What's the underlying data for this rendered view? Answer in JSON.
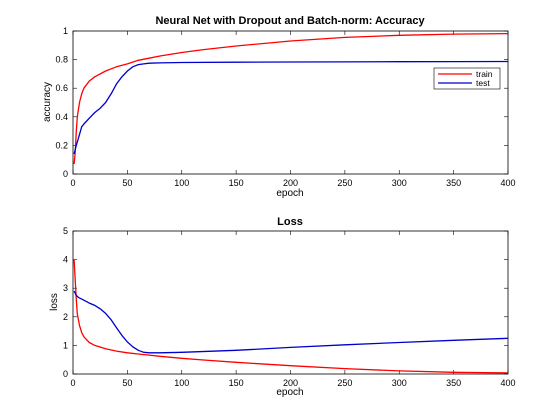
{
  "chart_data": [
    {
      "type": "line",
      "title": "Neural Net with Dropout and Batch-norm: Accuracy",
      "xlabel": "epoch",
      "ylabel": "accuracy",
      "xlim": [
        0,
        400
      ],
      "ylim": [
        0,
        1
      ],
      "xticks": [
        "0",
        "50",
        "100",
        "150",
        "200",
        "250",
        "300",
        "350",
        "400"
      ],
      "yticks": [
        "0",
        "0.2",
        "0.4",
        "0.6",
        "0.8",
        "1"
      ],
      "legend": "top-right",
      "series": [
        {
          "name": "train",
          "color": "#ff0000",
          "points": [
            [
              1,
              0.07
            ],
            [
              2,
              0.15
            ],
            [
              3,
              0.3
            ],
            [
              4,
              0.4
            ],
            [
              6,
              0.5
            ],
            [
              8,
              0.56
            ],
            [
              10,
              0.6
            ],
            [
              15,
              0.65
            ],
            [
              20,
              0.68
            ],
            [
              30,
              0.72
            ],
            [
              40,
              0.75
            ],
            [
              50,
              0.77
            ],
            [
              60,
              0.795
            ],
            [
              70,
              0.81
            ],
            [
              80,
              0.825
            ],
            [
              100,
              0.85
            ],
            [
              120,
              0.87
            ],
            [
              150,
              0.895
            ],
            [
              200,
              0.93
            ],
            [
              250,
              0.955
            ],
            [
              300,
              0.97
            ],
            [
              350,
              0.978
            ],
            [
              400,
              0.982
            ]
          ]
        },
        {
          "name": "test",
          "color": "#0000cc",
          "points": [
            [
              1,
              0.14
            ],
            [
              3,
              0.2
            ],
            [
              5,
              0.25
            ],
            [
              8,
              0.33
            ],
            [
              10,
              0.35
            ],
            [
              15,
              0.39
            ],
            [
              20,
              0.43
            ],
            [
              25,
              0.46
            ],
            [
              30,
              0.5
            ],
            [
              35,
              0.56
            ],
            [
              40,
              0.63
            ],
            [
              45,
              0.68
            ],
            [
              50,
              0.72
            ],
            [
              55,
              0.75
            ],
            [
              60,
              0.765
            ],
            [
              65,
              0.77
            ],
            [
              70,
              0.775
            ],
            [
              80,
              0.777
            ],
            [
              100,
              0.78
            ],
            [
              150,
              0.782
            ],
            [
              200,
              0.783
            ],
            [
              250,
              0.784
            ],
            [
              300,
              0.785
            ],
            [
              350,
              0.786
            ],
            [
              400,
              0.787
            ]
          ]
        }
      ]
    },
    {
      "type": "line",
      "title": "Loss",
      "xlabel": "epoch",
      "ylabel": "loss",
      "xlim": [
        0,
        400
      ],
      "ylim": [
        0,
        5
      ],
      "xticks": [
        "0",
        "50",
        "100",
        "150",
        "200",
        "250",
        "300",
        "350",
        "400"
      ],
      "yticks": [
        "0",
        "1",
        "2",
        "3",
        "4",
        "5"
      ],
      "series": [
        {
          "name": "train",
          "color": "#ff0000",
          "points": [
            [
              1,
              4.0
            ],
            [
              2,
              3.3
            ],
            [
              3,
              2.6
            ],
            [
              4,
              2.1
            ],
            [
              6,
              1.7
            ],
            [
              8,
              1.45
            ],
            [
              10,
              1.3
            ],
            [
              15,
              1.1
            ],
            [
              20,
              1.0
            ],
            [
              30,
              0.88
            ],
            [
              40,
              0.8
            ],
            [
              50,
              0.74
            ],
            [
              60,
              0.7
            ],
            [
              70,
              0.66
            ],
            [
              80,
              0.62
            ],
            [
              100,
              0.55
            ],
            [
              120,
              0.49
            ],
            [
              150,
              0.41
            ],
            [
              200,
              0.29
            ],
            [
              250,
              0.19
            ],
            [
              300,
              0.11
            ],
            [
              350,
              0.06
            ],
            [
              400,
              0.04
            ]
          ]
        },
        {
          "name": "test",
          "color": "#0000cc",
          "points": [
            [
              1,
              2.9
            ],
            [
              3,
              2.75
            ],
            [
              5,
              2.68
            ],
            [
              10,
              2.58
            ],
            [
              15,
              2.48
            ],
            [
              20,
              2.4
            ],
            [
              25,
              2.28
            ],
            [
              30,
              2.12
            ],
            [
              35,
              1.9
            ],
            [
              40,
              1.62
            ],
            [
              45,
              1.35
            ],
            [
              50,
              1.12
            ],
            [
              55,
              0.95
            ],
            [
              60,
              0.83
            ],
            [
              65,
              0.76
            ],
            [
              70,
              0.74
            ],
            [
              80,
              0.74
            ],
            [
              100,
              0.76
            ],
            [
              150,
              0.83
            ],
            [
              200,
              0.93
            ],
            [
              250,
              1.02
            ],
            [
              300,
              1.1
            ],
            [
              350,
              1.18
            ],
            [
              400,
              1.25
            ]
          ]
        }
      ]
    }
  ]
}
